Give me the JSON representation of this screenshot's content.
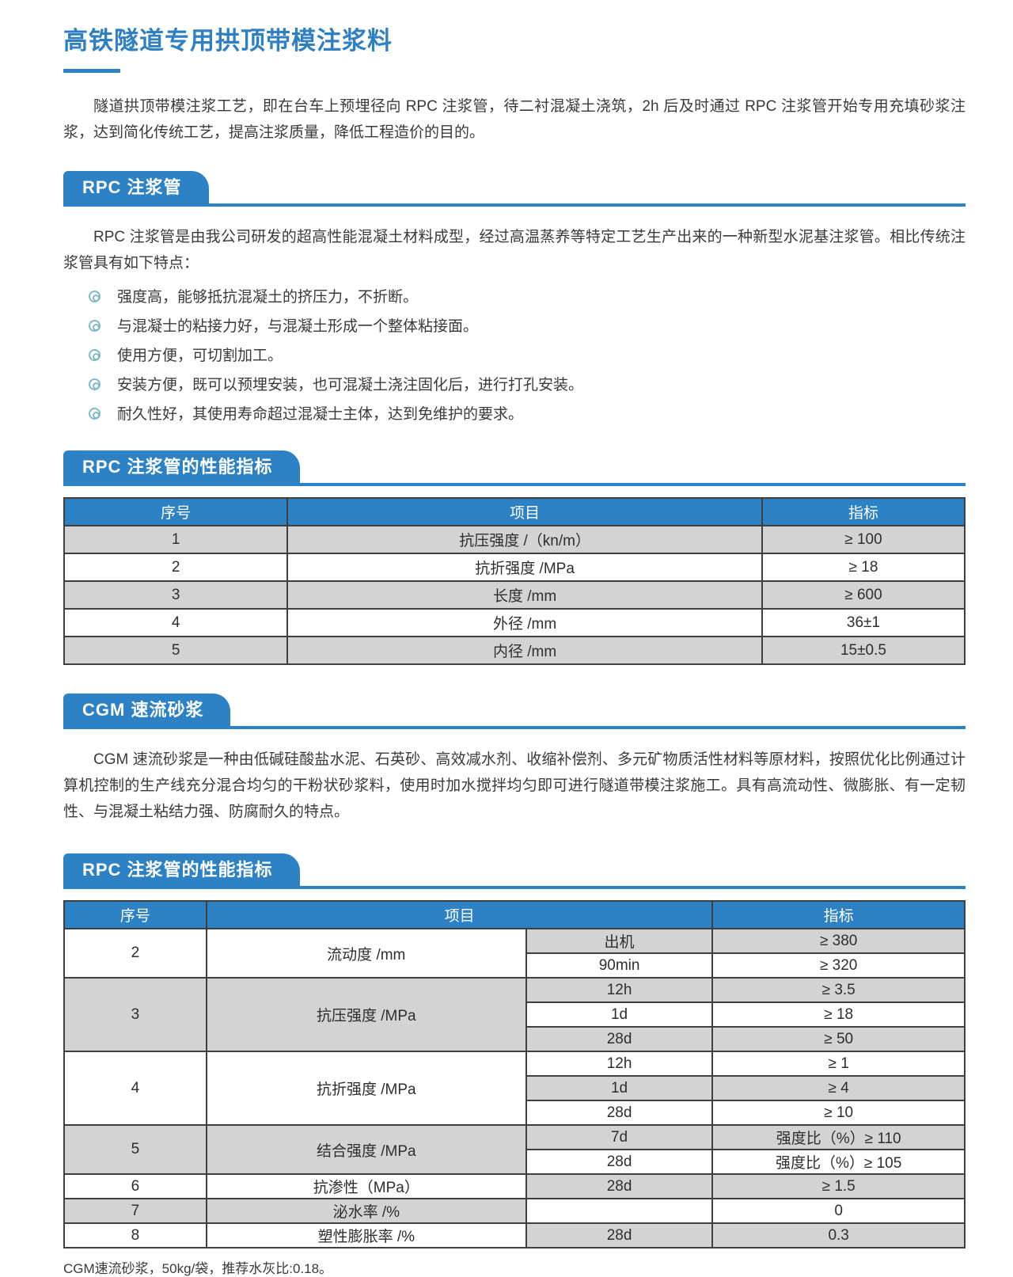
{
  "page": {
    "title": "高铁隧道专用拱顶带模注浆料",
    "intro": "隧道拱顶带模注浆工艺，即在台车上预埋径向 RPC 注浆管，待二衬混凝土浇筑，2h 后及时通过 RPC 注浆管开始专用充填砂浆注浆，达到简化传统工艺，提高注浆质量，降低工程造价的目的。",
    "footer_note": "CGM速流砂浆，50kg/袋，推荐水灰比:0.18。"
  },
  "colors": {
    "accent_blue": "#2d82c5",
    "title_blue": "#2f80c3",
    "row_gray": "#d3d3d3",
    "bullet_teal": "#7fb8c9"
  },
  "sections": {
    "rpc_pipe": {
      "heading": "RPC 注浆管",
      "paragraph": "RPC 注浆管是由我公司研发的超高性能混凝土材料成型，经过高温蒸养等特定工艺生产出来的一种新型水泥基注浆管。相比传统注浆管具有如下特点：",
      "bullets": [
        "强度高，能够抵抗混凝土的挤压力，不折断。",
        "与混凝士的粘接力好，与混凝土形成一个整体粘接面。",
        "使用方便，可切割加工。",
        "安装方便，既可以预埋安装，也可混凝土浇注固化后，进行打孔安装。",
        "耐久性好，其使用寿命超过混凝士主体，达到免维护的要求。"
      ]
    },
    "table1": {
      "heading": "RPC 注浆管的性能指标",
      "columns": [
        "序号",
        "项目",
        "指标"
      ],
      "rows": [
        [
          "1",
          "抗压强度 /（kn/m）",
          "≥ 100"
        ],
        [
          "2",
          "抗折强度 /MPa",
          "≥ 18"
        ],
        [
          "3",
          "长度 /mm",
          "≥ 600"
        ],
        [
          "4",
          "外径 /mm",
          "36±1"
        ],
        [
          "5",
          "内径 /mm",
          "15±0.5"
        ]
      ]
    },
    "cgm": {
      "heading": "CGM 速流砂浆",
      "paragraph": "CGM 速流砂浆是一种由低碱硅酸盐水泥、石英砂、高效减水剂、收缩补偿剂、多元矿物质活性材料等原材料，按照优化比例通过计算机控制的生产线充分混合均匀的干粉状砂浆料，使用时加水搅拌均匀即可进行隧道带模注浆施工。具有高流动性、微膨胀、有一定韧性、与混凝土粘结力强、防腐耐久的特点。"
    },
    "table2": {
      "heading": "RPC 注浆管的性能指标",
      "columns": [
        "序号",
        "项目",
        "指标"
      ],
      "groups": [
        {
          "no": "2",
          "item": "流动度 /mm",
          "rows": [
            {
              "cond": "出机",
              "value": "≥ 380"
            },
            {
              "cond": "90min",
              "value": "≥ 320"
            }
          ]
        },
        {
          "no": "3",
          "item": "抗压强度 /MPa",
          "rows": [
            {
              "cond": "12h",
              "value": "≥ 3.5"
            },
            {
              "cond": "1d",
              "value": "≥ 18"
            },
            {
              "cond": "28d",
              "value": "≥ 50"
            }
          ]
        },
        {
          "no": "4",
          "item": "抗折强度 /MPa",
          "rows": [
            {
              "cond": "12h",
              "value": "≥ 1"
            },
            {
              "cond": "1d",
              "value": "≥ 4"
            },
            {
              "cond": "28d",
              "value": "≥ 10"
            }
          ]
        },
        {
          "no": "5",
          "item": "结合强度 /MPa",
          "rows": [
            {
              "cond": "7d",
              "value": "强度比（%）≥ 110"
            },
            {
              "cond": "28d",
              "value": "强度比（%）≥ 105"
            }
          ]
        },
        {
          "no": "6",
          "item": "抗渗性（MPa）",
          "rows": [
            {
              "cond": "28d",
              "value": "≥ 1.5"
            }
          ]
        },
        {
          "no": "7",
          "item": "泌水率 /%",
          "rows": [
            {
              "cond": "",
              "value": "0"
            }
          ]
        },
        {
          "no": "8",
          "item": "塑性膨胀率 /%",
          "rows": [
            {
              "cond": "28d",
              "value": "0.3"
            }
          ]
        }
      ]
    }
  }
}
